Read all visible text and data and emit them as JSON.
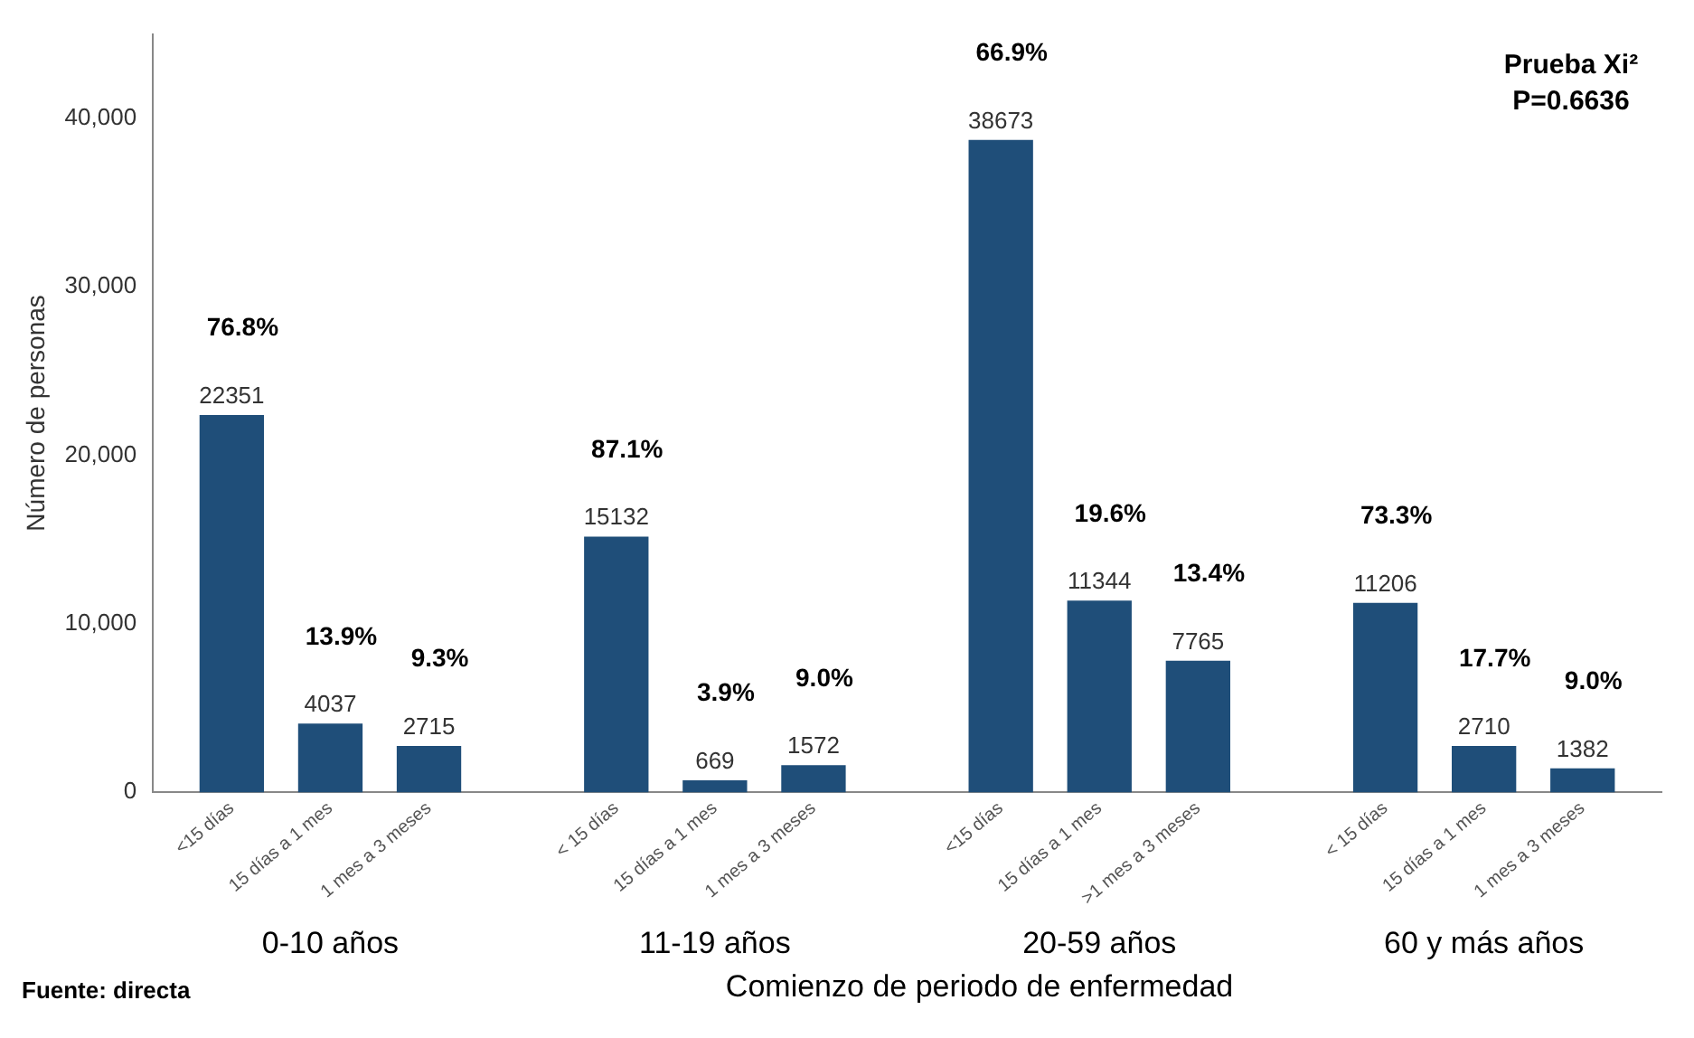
{
  "chart_data": {
    "type": "bar",
    "xlabel": "Comienzo de periodo de enfermedad",
    "ylabel": "Número de personas",
    "categories": [
      "<15 días",
      "15 días a 1 mes",
      "1 mes a 3 meses",
      "< 15 días",
      "15 días a 1 mes",
      "1 mes a 3 meses",
      "<15 días",
      "15 días a 1 mes",
      ">1 mes a 3 meses",
      "< 15 días",
      "15 días a 1 mes",
      "1 mes a 3 meses"
    ],
    "values": [
      22351,
      4037,
      2715,
      15132,
      669,
      1572,
      38673,
      11344,
      7765,
      11206,
      2710,
      1382
    ],
    "color": "#1f4e79",
    "data_labels": true,
    "ylim": [
      0,
      45000
    ],
    "yticks": [
      0,
      {
        "value": 10000,
        "label": "10,000"
      },
      {
        "value": 20000,
        "label": "20,000"
      },
      {
        "value": 30000,
        "label": "30,000"
      },
      {
        "value": 40000,
        "label": "40,000"
      }
    ],
    "grid": false,
    "legend": false,
    "annotations": [
      "76.8%",
      "13.9%",
      "9.3%",
      "87.1%",
      "3.9%",
      "9.0%",
      "66.9%",
      "19.6%",
      "13.4%",
      "73.3%",
      "17.7%",
      "9.0%",
      "0-10 años",
      "11-19 años",
      "20-59 años",
      "60 y más años",
      "Prueba Xi²",
      "P=0.6636",
      "Fuente: directa"
    ]
  }
}
